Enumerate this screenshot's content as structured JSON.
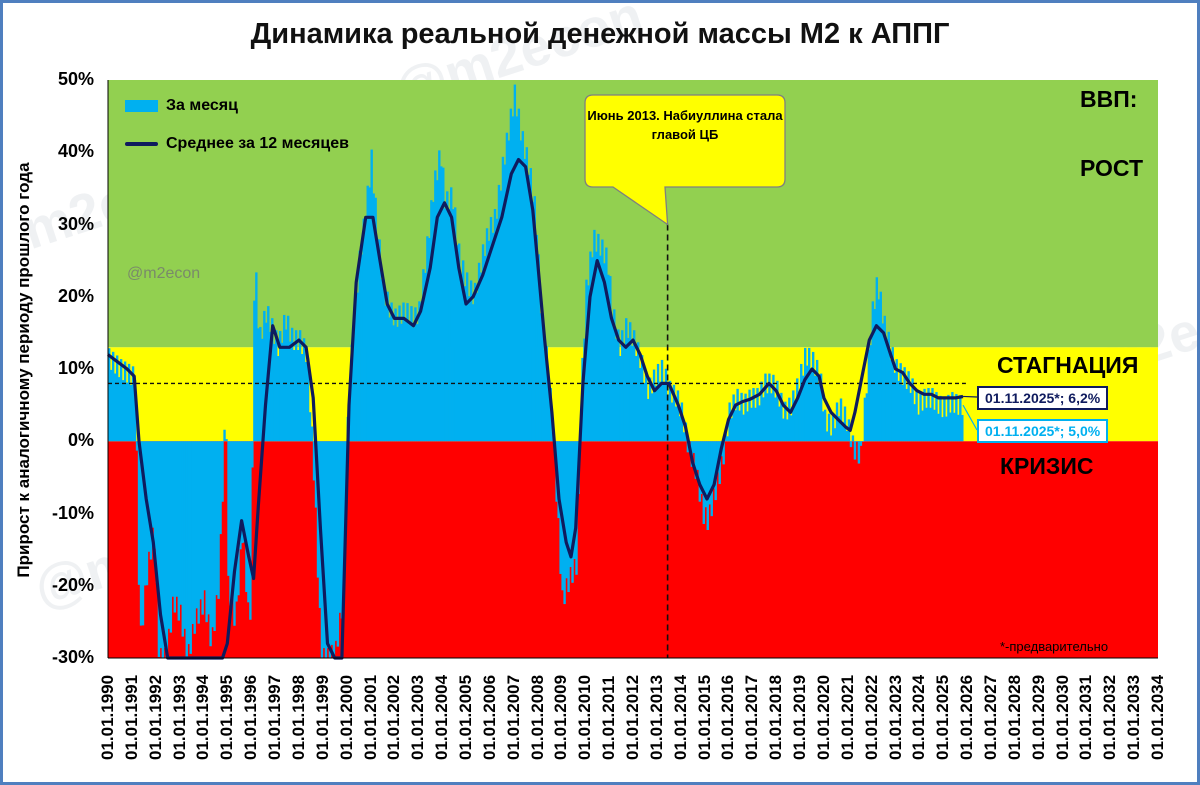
{
  "title": "Динамика реальной денежной массы М2 к АППГ",
  "handle": "@m2econ",
  "watermarks": [
    "@m2econ",
    "m2econ",
    "@m2econ",
    "m2econ"
  ],
  "chart_data": {
    "type": "bar",
    "title": "Динамика реальной денежной массы М2 к АППГ",
    "ylabel": "Прирост к аналогичному периоду прошлого года",
    "ylim": [
      -30,
      50
    ],
    "yticks": [
      "50%",
      "40%",
      "30%",
      "20%",
      "10%",
      "0%",
      "-10%",
      "-20%",
      "-30%"
    ],
    "xlim_years": [
      1990,
      2034
    ],
    "xticks": [
      "01.01.1990",
      "01.01.1991",
      "01.01.1992",
      "01.01.1993",
      "01.01.1994",
      "01.01.1995",
      "01.01.1996",
      "01.01.1997",
      "01.01.1998",
      "01.01.1999",
      "01.01.2000",
      "01.01.2001",
      "01.01.2002",
      "01.01.2003",
      "01.01.2004",
      "01.01.2005",
      "01.01.2006",
      "01.01.2007",
      "01.01.2008",
      "01.01.2009",
      "01.01.2010",
      "01.01.2011",
      "01.01.2012",
      "01.01.2013",
      "01.01.2014",
      "01.01.2015",
      "01.01.2016",
      "01.01.2017",
      "01.01.2018",
      "01.01.2019",
      "01.01.2020",
      "01.01.2021",
      "01.01.2022",
      "01.01.2023",
      "01.01.2024",
      "01.01.2025",
      "01.01.2026",
      "01.01.2027",
      "01.01.2028",
      "01.01.2029",
      "01.01.2030",
      "01.01.2031",
      "01.01.2032",
      "01.01.2033",
      "01.01.2034"
    ],
    "zones": [
      {
        "label": "ВВП:",
        "from": 13,
        "to": 50,
        "color": "#92d050"
      },
      {
        "label": "РОСТ",
        "from": 13,
        "to": 50,
        "color": "#92d050"
      },
      {
        "label": "СТАГНАЦИЯ",
        "from": 0,
        "to": 13,
        "color": "#ffff00"
      },
      {
        "label": "КРИЗИС",
        "from": -30,
        "to": 0,
        "color": "#ff0000"
      }
    ],
    "reference_line": {
      "y": 8,
      "style": "dashed"
    },
    "event_line": {
      "x": 2013.45
    },
    "annotation": "Июнь 2013. Набиуллина стала главой ЦБ",
    "series": [
      {
        "name": "За месяц",
        "kind": "bar",
        "color": "#00b0f0",
        "points": [
          [
            1990.0,
            11.5
          ],
          [
            1990.5,
            10
          ],
          [
            1991.0,
            9
          ],
          [
            1991.1,
            10
          ],
          [
            1991.3,
            -28
          ],
          [
            1991.6,
            -18
          ],
          [
            1991.9,
            -12
          ],
          [
            1992.1,
            -30
          ],
          [
            1992.4,
            -30
          ],
          [
            1992.7,
            -22
          ],
          [
            1993.0,
            -24
          ],
          [
            1993.3,
            -30
          ],
          [
            1993.6,
            -25
          ],
          [
            1994.0,
            -22
          ],
          [
            1994.3,
            -28
          ],
          [
            1994.6,
            -20
          ],
          [
            1994.9,
            6
          ],
          [
            1995.0,
            -20
          ],
          [
            1995.3,
            -25
          ],
          [
            1995.6,
            -12
          ],
          [
            1995.9,
            -27
          ],
          [
            1996.0,
            -5
          ],
          [
            1996.1,
            26
          ],
          [
            1996.3,
            14
          ],
          [
            1996.6,
            18
          ],
          [
            1996.9,
            15
          ],
          [
            1997.1,
            13
          ],
          [
            1997.4,
            17
          ],
          [
            1997.7,
            14
          ],
          [
            1998.0,
            14
          ],
          [
            1998.3,
            12
          ],
          [
            1998.6,
            -5
          ],
          [
            1998.9,
            -30
          ],
          [
            1999.2,
            -30
          ],
          [
            1999.5,
            -29
          ],
          [
            1999.8,
            -22
          ],
          [
            2000.0,
            2
          ],
          [
            2000.2,
            14
          ],
          [
            2000.5,
            25
          ],
          [
            2000.8,
            33
          ],
          [
            2001.0,
            39
          ],
          [
            2001.2,
            31
          ],
          [
            2001.5,
            21
          ],
          [
            2001.8,
            18
          ],
          [
            2002.0,
            17
          ],
          [
            2002.4,
            18
          ],
          [
            2002.8,
            17
          ],
          [
            2003.0,
            18
          ],
          [
            2003.3,
            26
          ],
          [
            2003.6,
            35
          ],
          [
            2003.9,
            40
          ],
          [
            2004.1,
            33
          ],
          [
            2004.4,
            34
          ],
          [
            2004.7,
            25
          ],
          [
            2005.0,
            22
          ],
          [
            2005.3,
            20
          ],
          [
            2005.6,
            25
          ],
          [
            2005.9,
            29
          ],
          [
            2006.2,
            31
          ],
          [
            2006.5,
            38
          ],
          [
            2006.8,
            44
          ],
          [
            2007.0,
            48
          ],
          [
            2007.3,
            42
          ],
          [
            2007.6,
            38
          ],
          [
            2007.9,
            31
          ],
          [
            2008.1,
            18
          ],
          [
            2008.4,
            10
          ],
          [
            2008.6,
            2
          ],
          [
            2008.8,
            -10
          ],
          [
            2009.0,
            -22
          ],
          [
            2009.3,
            -19
          ],
          [
            2009.6,
            -17
          ],
          [
            2009.8,
            8
          ],
          [
            2010.0,
            21
          ],
          [
            2010.3,
            28
          ],
          [
            2010.6,
            27
          ],
          [
            2010.9,
            25
          ],
          [
            2011.1,
            18
          ],
          [
            2011.4,
            13
          ],
          [
            2011.7,
            16
          ],
          [
            2012.0,
            14
          ],
          [
            2012.3,
            11
          ],
          [
            2012.6,
            7
          ],
          [
            2012.9,
            9
          ],
          [
            2013.2,
            10
          ],
          [
            2013.5,
            7
          ],
          [
            2013.8,
            6
          ],
          [
            2014.0,
            4
          ],
          [
            2014.3,
            -1
          ],
          [
            2014.6,
            -4
          ],
          [
            2014.9,
            -10
          ],
          [
            2015.1,
            -11
          ],
          [
            2015.4,
            -7
          ],
          [
            2015.7,
            -3
          ],
          [
            2016.0,
            4
          ],
          [
            2016.3,
            6
          ],
          [
            2016.6,
            5
          ],
          [
            2016.9,
            6
          ],
          [
            2017.2,
            6
          ],
          [
            2017.5,
            8
          ],
          [
            2017.8,
            8
          ],
          [
            2018.0,
            7
          ],
          [
            2018.3,
            4
          ],
          [
            2018.6,
            5
          ],
          [
            2018.9,
            8
          ],
          [
            2019.2,
            12
          ],
          [
            2019.5,
            11
          ],
          [
            2019.8,
            9
          ],
          [
            2020.0,
            3
          ],
          [
            2020.3,
            2
          ],
          [
            2020.6,
            5
          ],
          [
            2020.9,
            3
          ],
          [
            2021.2,
            -1
          ],
          [
            2021.5,
            -2
          ],
          [
            2021.8,
            10
          ],
          [
            2022.0,
            18
          ],
          [
            2022.2,
            22
          ],
          [
            2022.5,
            16
          ],
          [
            2022.8,
            12
          ],
          [
            2023.0,
            10
          ],
          [
            2023.3,
            9
          ],
          [
            2023.6,
            8
          ],
          [
            2023.9,
            5
          ],
          [
            2024.2,
            6
          ],
          [
            2024.5,
            6
          ],
          [
            2024.8,
            5
          ],
          [
            2025.0,
            4.5
          ],
          [
            2025.3,
            5.5
          ],
          [
            2025.6,
            5
          ],
          [
            2025.83,
            5
          ]
        ]
      },
      {
        "name": "Среднее за 12 месяцев",
        "kind": "line",
        "color": "#0f1b5e",
        "points": [
          [
            1990.0,
            12
          ],
          [
            1990.4,
            11
          ],
          [
            1990.8,
            10
          ],
          [
            1991.1,
            9
          ],
          [
            1991.3,
            0
          ],
          [
            1991.6,
            -8
          ],
          [
            1991.9,
            -14
          ],
          [
            1992.2,
            -24
          ],
          [
            1992.5,
            -30
          ],
          [
            1992.8,
            -33
          ],
          [
            1993.2,
            -33
          ],
          [
            1993.6,
            -32
          ],
          [
            1994.0,
            -31
          ],
          [
            1994.4,
            -33
          ],
          [
            1994.8,
            -33
          ],
          [
            1995.0,
            -28
          ],
          [
            1995.3,
            -18
          ],
          [
            1995.6,
            -11
          ],
          [
            1995.9,
            -16
          ],
          [
            1996.1,
            -19
          ],
          [
            1996.3,
            -9
          ],
          [
            1996.6,
            5
          ],
          [
            1996.9,
            16
          ],
          [
            1997.2,
            13
          ],
          [
            1997.6,
            13
          ],
          [
            1998.0,
            14
          ],
          [
            1998.3,
            13
          ],
          [
            1998.6,
            6
          ],
          [
            1998.9,
            -12
          ],
          [
            1999.2,
            -28
          ],
          [
            1999.5,
            -35
          ],
          [
            1999.8,
            -31
          ],
          [
            2000.1,
            5
          ],
          [
            2000.4,
            22
          ],
          [
            2000.8,
            31
          ],
          [
            2001.1,
            31
          ],
          [
            2001.4,
            25
          ],
          [
            2001.7,
            19
          ],
          [
            2002.0,
            17
          ],
          [
            2002.4,
            17
          ],
          [
            2002.8,
            16
          ],
          [
            2003.1,
            18
          ],
          [
            2003.5,
            24
          ],
          [
            2003.8,
            31
          ],
          [
            2004.1,
            33
          ],
          [
            2004.4,
            31
          ],
          [
            2004.7,
            24
          ],
          [
            2005.0,
            19
          ],
          [
            2005.3,
            20
          ],
          [
            2005.7,
            23
          ],
          [
            2006.1,
            27
          ],
          [
            2006.5,
            31
          ],
          [
            2006.9,
            37
          ],
          [
            2007.2,
            39
          ],
          [
            2007.5,
            38
          ],
          [
            2007.8,
            32
          ],
          [
            2008.0,
            25
          ],
          [
            2008.3,
            14
          ],
          [
            2008.6,
            4
          ],
          [
            2008.9,
            -8
          ],
          [
            2009.2,
            -14
          ],
          [
            2009.4,
            -16
          ],
          [
            2009.6,
            -12
          ],
          [
            2009.9,
            8
          ],
          [
            2010.2,
            20
          ],
          [
            2010.5,
            25
          ],
          [
            2010.8,
            22
          ],
          [
            2011.1,
            17
          ],
          [
            2011.4,
            14
          ],
          [
            2011.7,
            13
          ],
          [
            2012.0,
            14
          ],
          [
            2012.3,
            12
          ],
          [
            2012.6,
            9
          ],
          [
            2012.9,
            7
          ],
          [
            2013.2,
            8
          ],
          [
            2013.5,
            8
          ],
          [
            2013.9,
            5
          ],
          [
            2014.2,
            2
          ],
          [
            2014.5,
            -3
          ],
          [
            2014.8,
            -6
          ],
          [
            2015.1,
            -8
          ],
          [
            2015.4,
            -6
          ],
          [
            2015.7,
            -1
          ],
          [
            2016.0,
            3
          ],
          [
            2016.3,
            5
          ],
          [
            2016.6,
            5.5
          ],
          [
            2016.9,
            5.8
          ],
          [
            2017.3,
            6.5
          ],
          [
            2017.7,
            8
          ],
          [
            2018.0,
            7
          ],
          [
            2018.3,
            5
          ],
          [
            2018.6,
            4
          ],
          [
            2018.9,
            6
          ],
          [
            2019.2,
            8.5
          ],
          [
            2019.5,
            10
          ],
          [
            2019.8,
            9
          ],
          [
            2020.0,
            6
          ],
          [
            2020.3,
            4
          ],
          [
            2020.6,
            3
          ],
          [
            2020.9,
            2
          ],
          [
            2021.1,
            1.5
          ],
          [
            2021.3,
            4
          ],
          [
            2021.6,
            9
          ],
          [
            2021.9,
            14
          ],
          [
            2022.2,
            16
          ],
          [
            2022.5,
            15
          ],
          [
            2022.8,
            12
          ],
          [
            2023.0,
            10
          ],
          [
            2023.3,
            9.5
          ],
          [
            2023.6,
            8
          ],
          [
            2023.9,
            7
          ],
          [
            2024.2,
            6.5
          ],
          [
            2024.5,
            6.5
          ],
          [
            2024.8,
            6
          ],
          [
            2025.2,
            6
          ],
          [
            2025.5,
            6
          ],
          [
            2025.83,
            6.2
          ]
        ]
      }
    ],
    "value_labels": [
      {
        "text": "01.11.2025*; 6,2%",
        "series": "Среднее за 12 месяцев",
        "color": "#0f1b5e"
      },
      {
        "text": "01.11.2025*; 5,0%",
        "series": "За месяц",
        "color": "#00b0f0"
      }
    ],
    "note": "*-предварительно"
  }
}
